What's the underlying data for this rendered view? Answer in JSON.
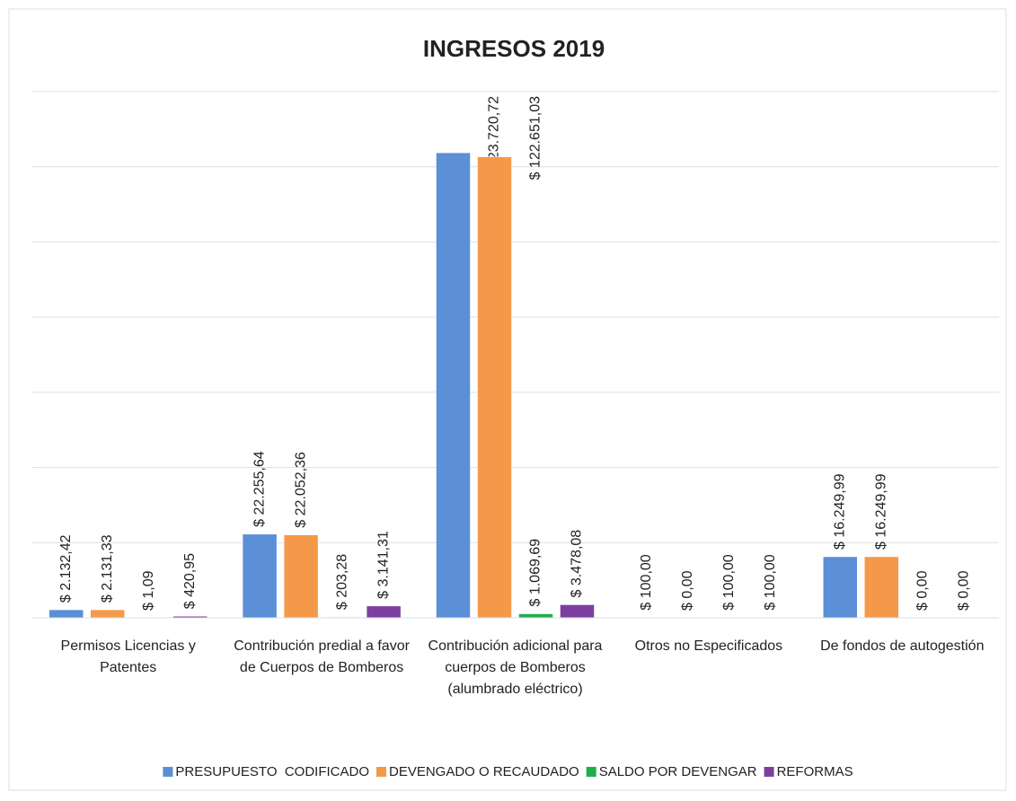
{
  "chart_data": {
    "type": "bar",
    "title": "INGRESOS 2019",
    "categories": [
      "Permisos Licencias y Patentes",
      "Contribución predial a favor de Cuerpos de Bomberos",
      "Contribución adicional para cuerpos de Bomberos (alumbrado eléctrico)",
      "Otros no Especificados",
      "De fondos de autogestión"
    ],
    "series": [
      {
        "name": "PRESUPUESTO  CODIFICADO",
        "color": "#5b8fd6",
        "values": [
          2132.42,
          22255.64,
          123720.72,
          100,
          16249.99
        ],
        "value_labels": [
          "$ 2.132,42",
          "$ 22.255,64",
          "$ 123.720,72",
          "$ 100,00",
          "$ 16.249,99"
        ]
      },
      {
        "name": "DEVENGADO O RECAUDADO",
        "color": "#f4994a",
        "values": [
          2131.33,
          22052.36,
          122651.03,
          0,
          16249.99
        ],
        "value_labels": [
          "$ 2.131,33",
          "$ 22.052,36",
          "$ 122.651,03",
          "$ 0,00",
          "$ 16.249,99"
        ]
      },
      {
        "name": "SALDO POR DEVENGAR",
        "color": "#1fad4e",
        "values": [
          1.09,
          203.28,
          1069.69,
          100,
          0
        ],
        "value_labels": [
          "$ 1,09",
          "$ 203,28",
          "$ 1.069,69",
          "$ 100,00",
          "$ 0,00"
        ]
      },
      {
        "name": "REFORMAS",
        "color": "#7c3fa0",
        "values": [
          420.95,
          3141.31,
          3478.08,
          100,
          0
        ],
        "value_labels": [
          "$ 420,95",
          "$ 3.141,31",
          "$ 3.478,08",
          "$ 100,00",
          "$ 0,00"
        ]
      }
    ],
    "ylim": [
      0,
      140000
    ],
    "yticks": [
      0,
      20000,
      40000,
      60000,
      80000,
      100000,
      120000,
      140000
    ],
    "grid": true,
    "legend": "bottom"
  }
}
